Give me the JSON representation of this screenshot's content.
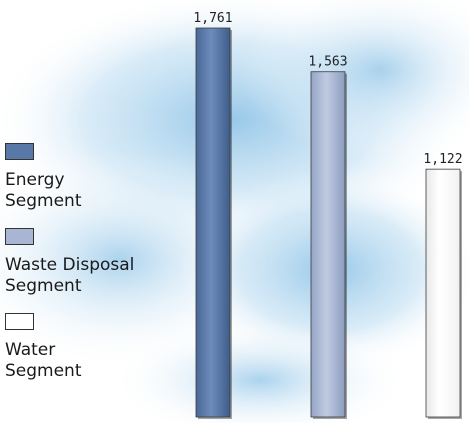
{
  "chart_data": {
    "type": "bar",
    "categories": [
      "Energy\nSegment",
      "Waste Disposal\nSegment",
      "Water\nSegment"
    ],
    "values": [
      1761,
      1563,
      1122
    ],
    "value_labels": [
      "1,761",
      "1,563",
      "1,122"
    ],
    "title": "",
    "xlabel": "",
    "ylabel": "",
    "ylim": [
      0,
      1761
    ],
    "grid": false,
    "legend_position": "left",
    "colors": [
      "#5878a8",
      "#a8b6d4",
      "#ffffff"
    ]
  }
}
